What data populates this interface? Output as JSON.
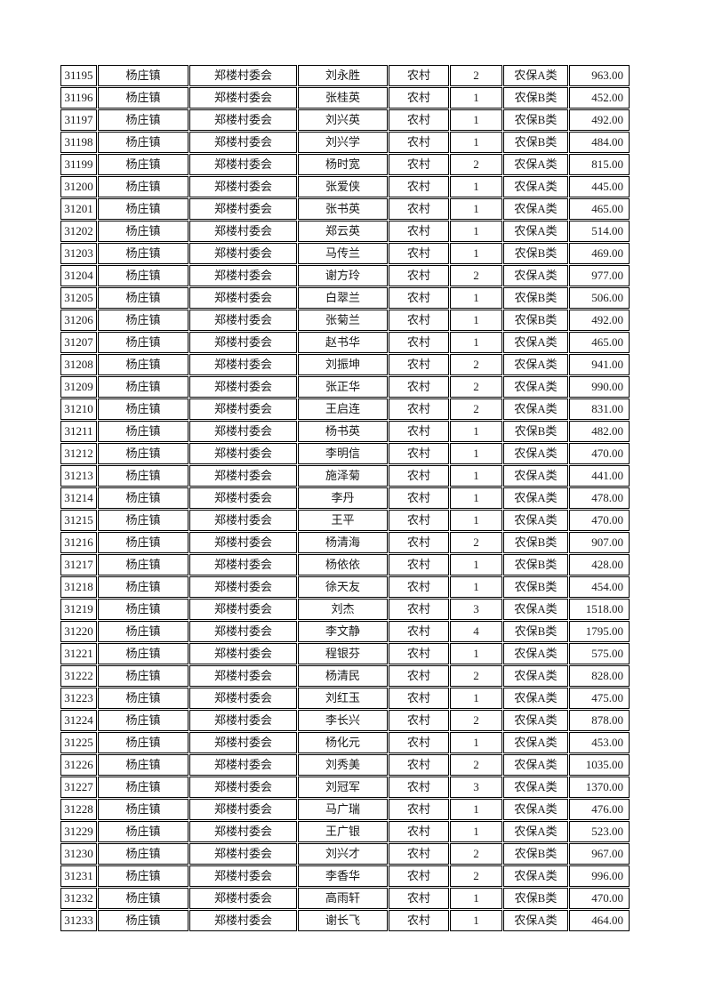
{
  "document": {
    "background_color": "#ffffff",
    "text_color": "#1a1a1a",
    "border_color": "#000000"
  },
  "table": {
    "column_keys": [
      "record-id",
      "town",
      "village-committee",
      "person-name",
      "residence-type",
      "person-count",
      "insurance-class",
      "amount"
    ],
    "rows": [
      [
        "31195",
        "杨庄镇",
        "郑楼村委会",
        "刘永胜",
        "农村",
        "2",
        "农保A类",
        "963.00"
      ],
      [
        "31196",
        "杨庄镇",
        "郑楼村委会",
        "张桂英",
        "农村",
        "1",
        "农保B类",
        "452.00"
      ],
      [
        "31197",
        "杨庄镇",
        "郑楼村委会",
        "刘兴英",
        "农村",
        "1",
        "农保B类",
        "492.00"
      ],
      [
        "31198",
        "杨庄镇",
        "郑楼村委会",
        "刘兴学",
        "农村",
        "1",
        "农保B类",
        "484.00"
      ],
      [
        "31199",
        "杨庄镇",
        "郑楼村委会",
        "杨时宽",
        "农村",
        "2",
        "农保A类",
        "815.00"
      ],
      [
        "31200",
        "杨庄镇",
        "郑楼村委会",
        "张爱侠",
        "农村",
        "1",
        "农保A类",
        "445.00"
      ],
      [
        "31201",
        "杨庄镇",
        "郑楼村委会",
        "张书英",
        "农村",
        "1",
        "农保A类",
        "465.00"
      ],
      [
        "31202",
        "杨庄镇",
        "郑楼村委会",
        "郑云英",
        "农村",
        "1",
        "农保A类",
        "514.00"
      ],
      [
        "31203",
        "杨庄镇",
        "郑楼村委会",
        "马传兰",
        "农村",
        "1",
        "农保B类",
        "469.00"
      ],
      [
        "31204",
        "杨庄镇",
        "郑楼村委会",
        "谢方玲",
        "农村",
        "2",
        "农保A类",
        "977.00"
      ],
      [
        "31205",
        "杨庄镇",
        "郑楼村委会",
        "白翠兰",
        "农村",
        "1",
        "农保B类",
        "506.00"
      ],
      [
        "31206",
        "杨庄镇",
        "郑楼村委会",
        "张菊兰",
        "农村",
        "1",
        "农保B类",
        "492.00"
      ],
      [
        "31207",
        "杨庄镇",
        "郑楼村委会",
        "赵书华",
        "农村",
        "1",
        "农保A类",
        "465.00"
      ],
      [
        "31208",
        "杨庄镇",
        "郑楼村委会",
        "刘振坤",
        "农村",
        "2",
        "农保A类",
        "941.00"
      ],
      [
        "31209",
        "杨庄镇",
        "郑楼村委会",
        "张正华",
        "农村",
        "2",
        "农保A类",
        "990.00"
      ],
      [
        "31210",
        "杨庄镇",
        "郑楼村委会",
        "王启连",
        "农村",
        "2",
        "农保A类",
        "831.00"
      ],
      [
        "31211",
        "杨庄镇",
        "郑楼村委会",
        "杨书英",
        "农村",
        "1",
        "农保B类",
        "482.00"
      ],
      [
        "31212",
        "杨庄镇",
        "郑楼村委会",
        "李明信",
        "农村",
        "1",
        "农保A类",
        "470.00"
      ],
      [
        "31213",
        "杨庄镇",
        "郑楼村委会",
        "施泽菊",
        "农村",
        "1",
        "农保A类",
        "441.00"
      ],
      [
        "31214",
        "杨庄镇",
        "郑楼村委会",
        "李丹",
        "农村",
        "1",
        "农保A类",
        "478.00"
      ],
      [
        "31215",
        "杨庄镇",
        "郑楼村委会",
        "王平",
        "农村",
        "1",
        "农保A类",
        "470.00"
      ],
      [
        "31216",
        "杨庄镇",
        "郑楼村委会",
        "杨清海",
        "农村",
        "2",
        "农保B类",
        "907.00"
      ],
      [
        "31217",
        "杨庄镇",
        "郑楼村委会",
        "杨依依",
        "农村",
        "1",
        "农保B类",
        "428.00"
      ],
      [
        "31218",
        "杨庄镇",
        "郑楼村委会",
        "徐天友",
        "农村",
        "1",
        "农保B类",
        "454.00"
      ],
      [
        "31219",
        "杨庄镇",
        "郑楼村委会",
        "刘杰",
        "农村",
        "3",
        "农保A类",
        "1518.00"
      ],
      [
        "31220",
        "杨庄镇",
        "郑楼村委会",
        "李文静",
        "农村",
        "4",
        "农保B类",
        "1795.00"
      ],
      [
        "31221",
        "杨庄镇",
        "郑楼村委会",
        "程银芬",
        "农村",
        "1",
        "农保A类",
        "575.00"
      ],
      [
        "31222",
        "杨庄镇",
        "郑楼村委会",
        "杨清民",
        "农村",
        "2",
        "农保A类",
        "828.00"
      ],
      [
        "31223",
        "杨庄镇",
        "郑楼村委会",
        "刘红玉",
        "农村",
        "1",
        "农保A类",
        "475.00"
      ],
      [
        "31224",
        "杨庄镇",
        "郑楼村委会",
        "李长兴",
        "农村",
        "2",
        "农保A类",
        "878.00"
      ],
      [
        "31225",
        "杨庄镇",
        "郑楼村委会",
        "杨化元",
        "农村",
        "1",
        "农保A类",
        "453.00"
      ],
      [
        "31226",
        "杨庄镇",
        "郑楼村委会",
        "刘秀美",
        "农村",
        "2",
        "农保A类",
        "1035.00"
      ],
      [
        "31227",
        "杨庄镇",
        "郑楼村委会",
        "刘冠军",
        "农村",
        "3",
        "农保A类",
        "1370.00"
      ],
      [
        "31228",
        "杨庄镇",
        "郑楼村委会",
        "马广瑞",
        "农村",
        "1",
        "农保A类",
        "476.00"
      ],
      [
        "31229",
        "杨庄镇",
        "郑楼村委会",
        "王广银",
        "农村",
        "1",
        "农保A类",
        "523.00"
      ],
      [
        "31230",
        "杨庄镇",
        "郑楼村委会",
        "刘兴才",
        "农村",
        "2",
        "农保B类",
        "967.00"
      ],
      [
        "31231",
        "杨庄镇",
        "郑楼村委会",
        "李香华",
        "农村",
        "2",
        "农保A类",
        "996.00"
      ],
      [
        "31232",
        "杨庄镇",
        "郑楼村委会",
        "高雨轩",
        "农村",
        "1",
        "农保B类",
        "470.00"
      ],
      [
        "31233",
        "杨庄镇",
        "郑楼村委会",
        "谢长飞",
        "农村",
        "1",
        "农保A类",
        "464.00"
      ]
    ]
  }
}
